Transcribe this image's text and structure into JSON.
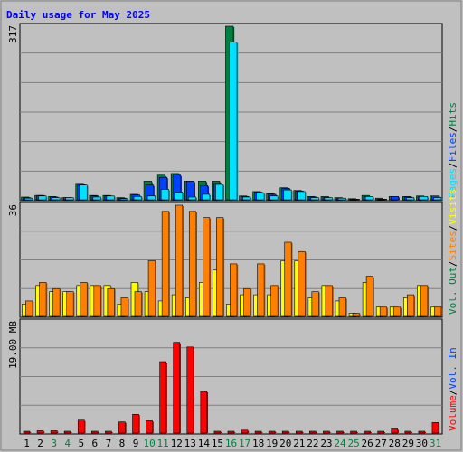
{
  "chart_data": [
    {
      "type": "bar",
      "title": "Daily usage for May 2025",
      "ymax_label": "317",
      "ylim": [
        0,
        317
      ],
      "right_label": [
        {
          "text": "Hits",
          "color": "#008040"
        },
        {
          "text": "/",
          "color": "#000000"
        },
        {
          "text": "Files",
          "color": "#0040ff"
        },
        {
          "text": "/",
          "color": "#000000"
        },
        {
          "text": "Pages",
          "color": "#00e0ff"
        }
      ],
      "categories": [
        "1",
        "2",
        "3",
        "4",
        "5",
        "6",
        "7",
        "8",
        "9",
        "10",
        "11",
        "12",
        "13",
        "14",
        "15",
        "16",
        "17",
        "18",
        "19",
        "20",
        "21",
        "22",
        "23",
        "24",
        "25",
        "26",
        "27",
        "28",
        "29",
        "30",
        "31"
      ],
      "series": [
        {
          "name": "Hits",
          "color": "#008040",
          "values": [
            5,
            8,
            6,
            4,
            30,
            8,
            8,
            4,
            10,
            34,
            45,
            48,
            34,
            34,
            34,
            317,
            7,
            15,
            11,
            22,
            17,
            6,
            6,
            4,
            2,
            8,
            3,
            6,
            6,
            7,
            7
          ]
        },
        {
          "name": "Files",
          "color": "#0040ff",
          "values": [
            4,
            8,
            5,
            4,
            28,
            7,
            7,
            3,
            9,
            27,
            41,
            45,
            34,
            26,
            30,
            0,
            6,
            14,
            10,
            21,
            16,
            5,
            4,
            2,
            1,
            6,
            1,
            6,
            5,
            6,
            7
          ]
        },
        {
          "name": "Pages",
          "color": "#00e0ff",
          "values": [
            3,
            7,
            4,
            4,
            27,
            5,
            7,
            2,
            6,
            7,
            19,
            14,
            5,
            10,
            28,
            288,
            5,
            12,
            7,
            18,
            15,
            4,
            4,
            3,
            1,
            6,
            1,
            0,
            4,
            6,
            4
          ]
        }
      ]
    },
    {
      "type": "bar",
      "ymax_label": "36",
      "ylim": [
        0,
        36
      ],
      "right_label": [
        {
          "text": "Visits",
          "color": "#ffff00"
        },
        {
          "text": "/",
          "color": "#000000"
        },
        {
          "text": "Sites",
          "color": "#ff8000"
        },
        {
          "text": "/",
          "color": "#000000"
        },
        {
          "text": "Vol. Out",
          "color": "#008040"
        }
      ],
      "series": [
        {
          "name": "Visits",
          "color": "#ffff00",
          "values": [
            4,
            10,
            8,
            8,
            10,
            10,
            10,
            4,
            11,
            8,
            5,
            7,
            6,
            11,
            15,
            4,
            7,
            7,
            7,
            18,
            18,
            6,
            10,
            5,
            1,
            11,
            3,
            3,
            6,
            10,
            3
          ]
        },
        {
          "name": "Sites",
          "color": "#ff8000",
          "values": [
            5,
            11,
            9,
            8,
            11,
            10,
            9,
            6,
            8,
            18,
            34,
            36,
            34,
            32,
            32,
            17,
            9,
            17,
            10,
            24,
            21,
            8,
            10,
            6,
            1,
            13,
            3,
            3,
            7,
            10,
            3
          ]
        }
      ]
    },
    {
      "type": "bar",
      "ymax_label": "19.00 MB",
      "ylim": [
        0,
        19
      ],
      "right_label": [
        {
          "text": "Vol. In",
          "color": "#0040ff"
        },
        {
          "text": "/",
          "color": "#000000"
        },
        {
          "text": "Volume",
          "color": "#ff0000"
        }
      ],
      "series": [
        {
          "name": "Volume",
          "color": "#ff0000",
          "values": [
            0.2,
            0.4,
            0.4,
            0.2,
            2.2,
            0.3,
            0.3,
            1.9,
            3.2,
            2.1,
            12.2,
            15.5,
            14.7,
            7.1,
            0.2,
            0.2,
            0.5,
            0.2,
            0.2,
            0.3,
            0.1,
            0.1,
            0.1,
            0.1,
            0.1,
            0.2,
            0.2,
            0.7,
            0.1,
            0.1,
            1.8
          ]
        }
      ]
    }
  ],
  "x_label_colors": [
    "#000000",
    "#000000",
    "#008040",
    "#008040",
    "#000000",
    "#000000",
    "#000000",
    "#000000",
    "#000000",
    "#008040",
    "#008040",
    "#000000",
    "#000000",
    "#000000",
    "#000000",
    "#008040",
    "#008040",
    "#000000",
    "#000000",
    "#000000",
    "#000000",
    "#000000",
    "#000000",
    "#008040",
    "#008040",
    "#000000",
    "#000000",
    "#000000",
    "#000000",
    "#000000",
    "#008040"
  ]
}
